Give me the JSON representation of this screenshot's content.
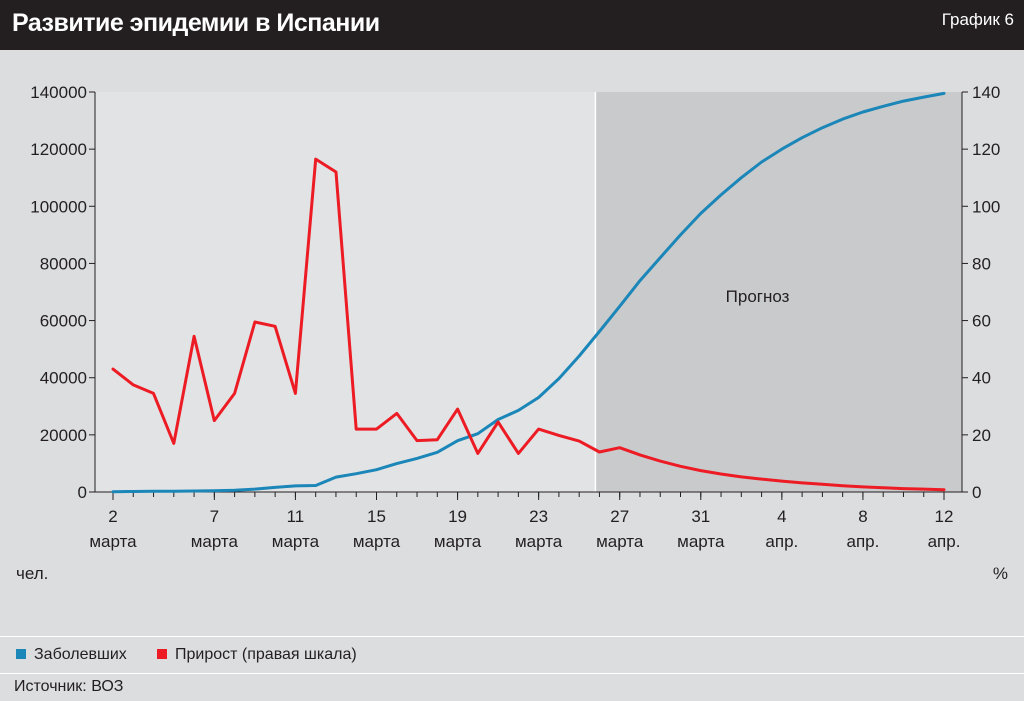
{
  "header": {
    "title": "Развитие эпидемии в Испании",
    "chart_id": "График 6"
  },
  "chart_data": {
    "type": "line",
    "y_left": {
      "unit": "чел.",
      "ticks": [
        "0",
        "20000",
        "40000",
        "60000",
        "80000",
        "100000",
        "120000",
        "140000"
      ],
      "range": [
        0,
        140000
      ]
    },
    "y_right": {
      "unit": "%",
      "ticks": [
        "0",
        "20",
        "40",
        "60",
        "80",
        "100",
        "120",
        "140"
      ],
      "range": [
        0,
        140
      ]
    },
    "x_ticks": [
      {
        "day": 2,
        "line1": "2",
        "line2": "марта"
      },
      {
        "day": 7,
        "line1": "7",
        "line2": "марта"
      },
      {
        "day": 11,
        "line1": "11",
        "line2": "марта"
      },
      {
        "day": 15,
        "line1": "15",
        "line2": "марта"
      },
      {
        "day": 19,
        "line1": "19",
        "line2": "марта"
      },
      {
        "day": 23,
        "line1": "23",
        "line2": "марта"
      },
      {
        "day": 27,
        "line1": "27",
        "line2": "марта"
      },
      {
        "day": 31,
        "line1": "31",
        "line2": "марта"
      },
      {
        "day": 35,
        "line1": "4",
        "line2": "апр."
      },
      {
        "day": 39,
        "line1": "8",
        "line2": "апр."
      },
      {
        "day": 43,
        "line1": "12",
        "line2": "апр."
      }
    ],
    "x_range": [
      2,
      43
    ],
    "forecast": {
      "label": "Прогноз",
      "start_day": 25.8
    },
    "series": [
      {
        "name": "Заболевших",
        "axis": "left",
        "color": "#1b86b8",
        "x": [
          2,
          3,
          4,
          5,
          6,
          7,
          8,
          9,
          10,
          11,
          12,
          13,
          14,
          15,
          16,
          17,
          18,
          19,
          20,
          21,
          22,
          23,
          24,
          25,
          26,
          27,
          28,
          29,
          30,
          31,
          32,
          33,
          34,
          35,
          36,
          37,
          38,
          39,
          40,
          41,
          42,
          43
        ],
        "values": [
          120,
          165,
          228,
          282,
          365,
          430,
          589,
          999,
          1622,
          2140,
          2277,
          5232,
          6391,
          7798,
          9942,
          11748,
          13910,
          17963,
          20410,
          25374,
          28572,
          33089,
          39673,
          47610,
          56188,
          65000,
          74000,
          82000,
          90000,
          97500,
          104000,
          110000,
          115500,
          120000,
          124000,
          127500,
          130500,
          133000,
          135000,
          136800,
          138200,
          139500
        ]
      },
      {
        "name": "Прирост (правая шкала)",
        "axis": "right",
        "color": "#ed1c24",
        "x": [
          2,
          3,
          4,
          5,
          6,
          7,
          8,
          9,
          10,
          11,
          12,
          13,
          14,
          15,
          16,
          17,
          18,
          19,
          20,
          21,
          22,
          23,
          24,
          25,
          26,
          27,
          28,
          29,
          30,
          31,
          32,
          33,
          34,
          35,
          36,
          37,
          38,
          39,
          40,
          41,
          42,
          43
        ],
        "values": [
          43,
          37.5,
          34.5,
          17,
          54.5,
          25,
          34.5,
          59.5,
          58,
          34.5,
          116.5,
          112,
          22,
          22,
          27.5,
          18,
          18.3,
          29,
          13.5,
          24.5,
          13.5,
          22,
          19.8,
          17.8,
          14,
          15.5,
          13,
          10.8,
          9,
          7.5,
          6.3,
          5.3,
          4.5,
          3.8,
          3.2,
          2.7,
          2.2,
          1.8,
          1.5,
          1.2,
          1.0,
          0.8
        ]
      }
    ]
  },
  "legend": [
    {
      "label": "Заболевших",
      "color": "#1b86b8"
    },
    {
      "label": "Прирост (правая шкала)",
      "color": "#ed1c24"
    }
  ],
  "source": "Источник: ВОЗ"
}
